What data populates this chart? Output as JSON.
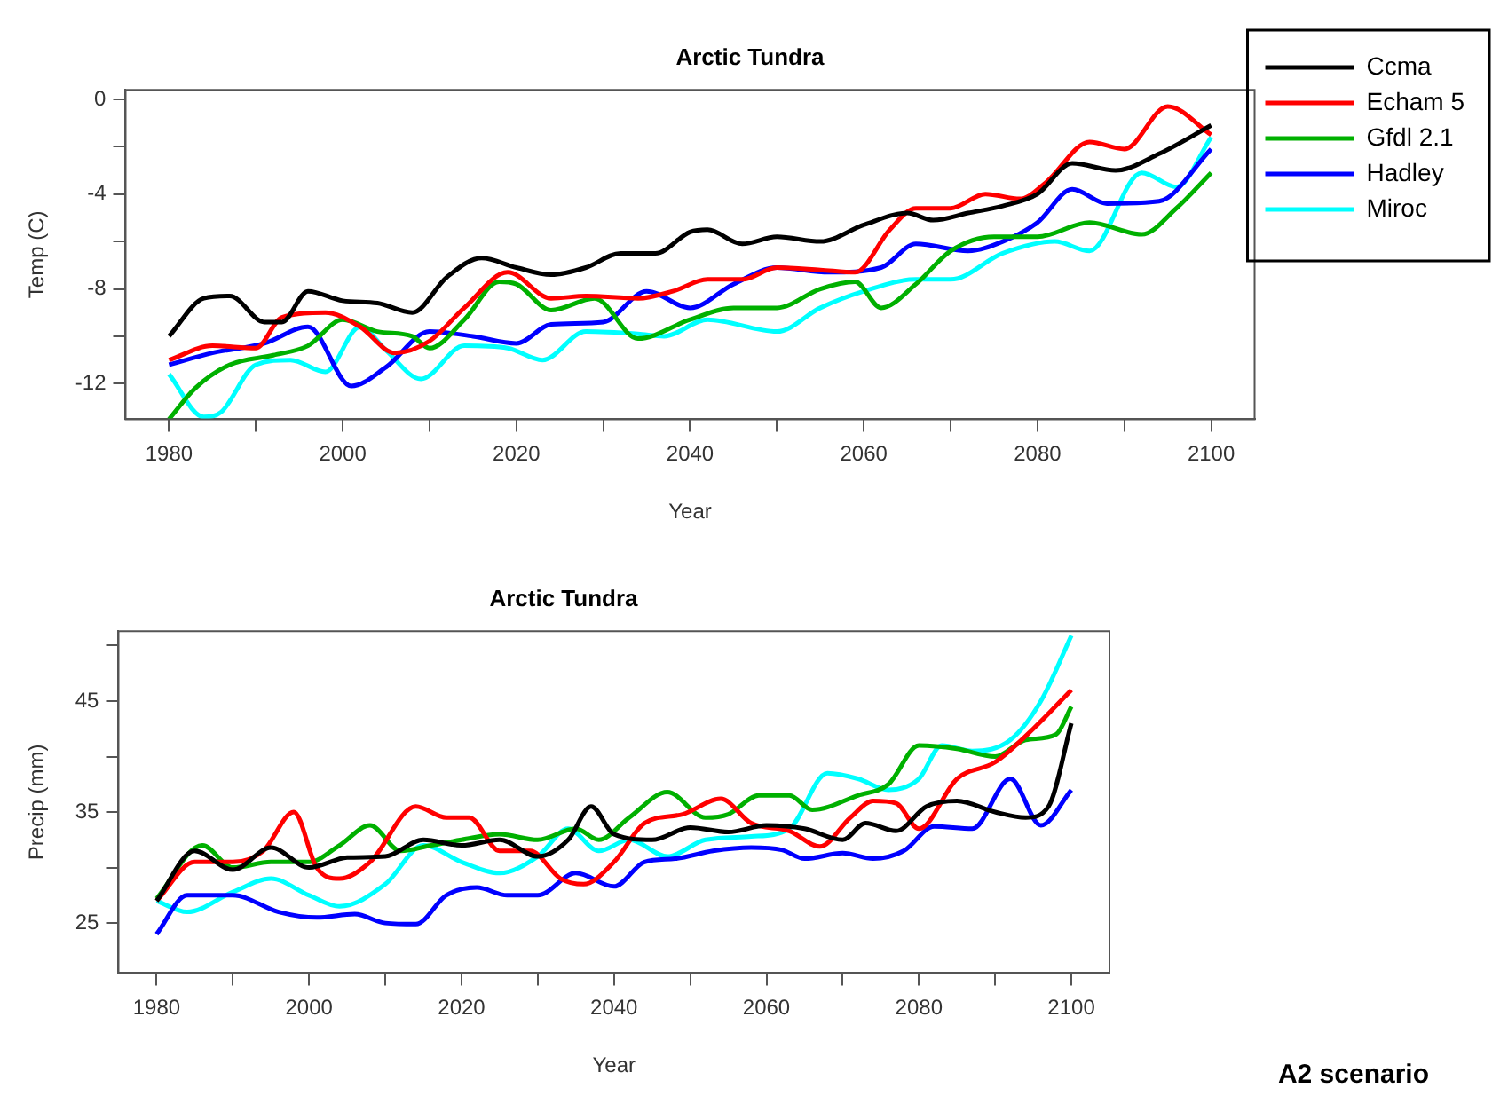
{
  "chart_data": [
    {
      "type": "line",
      "title": "Arctic Tundra",
      "xlabel": "Year",
      "ylabel": "Temp (C)",
      "xlim": [
        1975,
        2105
      ],
      "ylim": [
        -13.5,
        0.4
      ],
      "xticks": [
        1980,
        {
          "value": 1990,
          "label": null
        },
        2000,
        {
          "value": 2010,
          "label": null
        },
        2020,
        {
          "value": 2030,
          "label": null
        },
        2040,
        {
          "value": 2050,
          "label": null
        },
        2060,
        {
          "value": 2070,
          "label": null
        },
        2080,
        {
          "value": 2090,
          "label": null
        },
        2100
      ],
      "yticks": [
        -12,
        {
          "value": -10,
          "label": null
        },
        -8,
        {
          "value": -6,
          "label": null
        },
        -4,
        {
          "value": -2,
          "label": null
        },
        0
      ],
      "grid": false,
      "legend": "right",
      "marker": "none",
      "line_style": "solid",
      "series": [
        {
          "name": "Ccma",
          "color": "#000000",
          "x": [
            1980,
            1984,
            1987,
            1991,
            1993,
            1996,
            2000,
            2004,
            2008,
            2012,
            2016,
            2020,
            2024,
            2028,
            2032,
            2036,
            2040,
            2042,
            2046,
            2050,
            2055,
            2060,
            2065,
            2068,
            2072,
            2076,
            2080,
            2084,
            2089,
            2094,
            2100
          ],
          "values": [
            -10,
            -8.4,
            -8.3,
            -9.4,
            -9.4,
            -8.1,
            -8.5,
            -8.6,
            -9.0,
            -7.5,
            -6.7,
            -7.1,
            -7.4,
            -7.1,
            -6.5,
            -6.5,
            -5.6,
            -5.5,
            -6.1,
            -5.8,
            -6.0,
            -5.3,
            -4.8,
            -5.1,
            -4.8,
            -4.5,
            -4.0,
            -2.7,
            -3.0,
            -2.3,
            -1.1
          ]
        },
        {
          "name": "Echam 5",
          "color": "#ff0000",
          "x": [
            1980,
            1985,
            1990,
            1993,
            1998,
            2002,
            2006,
            2010,
            2014,
            2019,
            2024,
            2028,
            2034,
            2038,
            2042,
            2046,
            2050,
            2055,
            2059,
            2063,
            2066,
            2070,
            2074,
            2078,
            2081,
            2086,
            2090,
            2095,
            2100
          ],
          "values": [
            -11,
            -10.4,
            -10.5,
            -9.2,
            -9.0,
            -9.6,
            -10.7,
            -10.2,
            -8.8,
            -7.3,
            -8.4,
            -8.3,
            -8.4,
            -8.1,
            -7.6,
            -7.6,
            -7.1,
            -7.2,
            -7.3,
            -5.5,
            -4.6,
            -4.6,
            -4.0,
            -4.2,
            -3.5,
            -1.8,
            -2.1,
            -0.3,
            -1.5
          ]
        },
        {
          "name": "Gfdl 2.1",
          "color": "#00b000",
          "x": [
            1980,
            1983,
            1987,
            1992,
            1996,
            2000,
            2004,
            2008,
            2010,
            2014,
            2018,
            2020,
            2024,
            2029,
            2034,
            2040,
            2045,
            2050,
            2055,
            2059,
            2062,
            2066,
            2070,
            2075,
            2080,
            2086,
            2092,
            2096,
            2100
          ],
          "values": [
            -13.5,
            -12.2,
            -11.2,
            -10.8,
            -10.4,
            -9.3,
            -9.8,
            -10.0,
            -10.5,
            -9.3,
            -7.7,
            -7.8,
            -8.9,
            -8.4,
            -10.1,
            -9.3,
            -8.8,
            -8.8,
            -8.0,
            -7.7,
            -8.8,
            -7.8,
            -6.4,
            -5.8,
            -5.8,
            -5.2,
            -5.7,
            -4.6,
            -3.1
          ]
        },
        {
          "name": "Hadley",
          "color": "#0000ff",
          "x": [
            1980,
            1985,
            1991,
            1996,
            2001,
            2005,
            2010,
            2015,
            2020,
            2024,
            2030,
            2035,
            2040,
            2045,
            2050,
            2056,
            2062,
            2066,
            2072,
            2076,
            2080,
            2084,
            2088,
            2094,
            2100
          ],
          "values": [
            -11.2,
            -10.7,
            -10.3,
            -9.6,
            -12.1,
            -11.3,
            -9.8,
            -10.0,
            -10.3,
            -9.5,
            -9.4,
            -8.1,
            -8.8,
            -7.8,
            -7.1,
            -7.3,
            -7.1,
            -6.1,
            -6.4,
            -6.0,
            -5.2,
            -3.8,
            -4.4,
            -4.3,
            -2.1
          ]
        },
        {
          "name": "Miroc",
          "color": "#00ffff",
          "x": [
            1980,
            1984,
            1986,
            1990,
            1994,
            1998,
            2002,
            2005,
            2009,
            2014,
            2019,
            2023,
            2028,
            2034,
            2037,
            2042,
            2050,
            2055,
            2060,
            2066,
            2070,
            2076,
            2082,
            2086,
            2092,
            2096,
            2100
          ],
          "values": [
            -11.6,
            -13.4,
            -13.2,
            -11.2,
            -11.0,
            -11.5,
            -9.6,
            -10.6,
            -11.8,
            -10.4,
            -10.5,
            -11.0,
            -9.8,
            -9.9,
            -10.0,
            -9.3,
            -9.8,
            -8.8,
            -8.1,
            -7.6,
            -7.6,
            -6.5,
            -6.0,
            -6.4,
            -3.1,
            -3.7,
            -1.6
          ]
        }
      ]
    },
    {
      "type": "line",
      "title": "Arctic Tundra",
      "xlabel": "Year",
      "ylabel": "Precip (mm)",
      "xlim": [
        1975,
        2105
      ],
      "ylim": [
        20.5,
        51.3
      ],
      "xticks": [
        1980,
        {
          "value": 1990,
          "label": null
        },
        2000,
        {
          "value": 2010,
          "label": null
        },
        2020,
        {
          "value": 2030,
          "label": null
        },
        2040,
        {
          "value": 2050,
          "label": null
        },
        2060,
        {
          "value": 2070,
          "label": null
        },
        2080,
        {
          "value": 2090,
          "label": null
        },
        2100
      ],
      "yticks": [
        25,
        {
          "value": 30,
          "label": null
        },
        35,
        {
          "value": 40,
          "label": null
        },
        45,
        {
          "value": 50,
          "label": null
        }
      ],
      "grid": false,
      "marker": "none",
      "line_style": "solid",
      "annotations": [
        "A2 scenario"
      ],
      "series": [
        {
          "color": "#000000",
          "x": [
            1980,
            1985,
            1990,
            1995,
            2000,
            2005,
            2010,
            2015,
            2020,
            2025,
            2030,
            2034,
            2037,
            2040,
            2045,
            2050,
            2055,
            2060,
            2065,
            2070,
            2073,
            2077,
            2081,
            2085,
            2090,
            2094,
            2097,
            2100
          ],
          "values": [
            27,
            31.5,
            29.8,
            31.8,
            30,
            30.9,
            31,
            32.5,
            32,
            32.5,
            31,
            32.5,
            35.5,
            33,
            32.5,
            33.6,
            33.2,
            33.8,
            33.5,
            32.5,
            34,
            33.3,
            35.5,
            36,
            35,
            34.5,
            35.5,
            43
          ]
        },
        {
          "color": "#ff0000",
          "x": [
            1980,
            1985,
            1990,
            1994,
            1998,
            2001,
            2004,
            2008,
            2014,
            2018,
            2021,
            2025,
            2029,
            2033,
            2036,
            2040,
            2044,
            2049,
            2054,
            2058,
            2063,
            2067,
            2071,
            2074,
            2077,
            2080,
            2085,
            2090,
            2095,
            2100
          ],
          "values": [
            27,
            30.5,
            30.5,
            31.5,
            35,
            30,
            29,
            30.5,
            35.5,
            34.5,
            34.5,
            31.5,
            31.5,
            29,
            28.5,
            30.5,
            34,
            34.8,
            36.2,
            34,
            33.3,
            31.9,
            34.5,
            36,
            35.8,
            33.5,
            38,
            39.5,
            42.5,
            46
          ]
        },
        {
          "color": "#00b000",
          "x": [
            1980,
            1986,
            1990,
            1995,
            2000,
            2004,
            2008,
            2012,
            2016,
            2020,
            2025,
            2030,
            2035,
            2038,
            2042,
            2047,
            2052,
            2055,
            2059,
            2063,
            2066,
            2072,
            2076,
            2080,
            2085,
            2090,
            2094,
            2098,
            2100
          ],
          "values": [
            27.2,
            32,
            30,
            30.5,
            30.5,
            32,
            33.8,
            31.5,
            32,
            32.5,
            33,
            32.5,
            33.5,
            32.5,
            34.5,
            36.8,
            34.5,
            34.8,
            36.5,
            36.5,
            35.2,
            36.5,
            37.5,
            41,
            40.7,
            40,
            41.5,
            42,
            44.5
          ]
        },
        {
          "color": "#0000ff",
          "x": [
            1980,
            1984,
            1990,
            1996,
            2001,
            2006,
            2010,
            2014,
            2018,
            2022,
            2026,
            2030,
            2035,
            2040,
            2044,
            2048,
            2053,
            2058,
            2062,
            2065,
            2070,
            2074,
            2078,
            2082,
            2087,
            2092,
            2096,
            2100
          ],
          "values": [
            24,
            27.5,
            27.5,
            26,
            25.5,
            25.8,
            25,
            24.9,
            27.5,
            28.2,
            27.5,
            27.5,
            29.5,
            28.3,
            30.5,
            30.8,
            31.5,
            31.8,
            31.6,
            30.8,
            31.3,
            30.8,
            31.5,
            33.7,
            33.5,
            38,
            33.8,
            37
          ]
        },
        {
          "color": "#00ffff",
          "x": [
            1980,
            1984,
            1990,
            1995,
            2000,
            2004,
            2010,
            2015,
            2020,
            2025,
            2030,
            2034,
            2038,
            2042,
            2047,
            2052,
            2058,
            2063,
            2068,
            2072,
            2076,
            2080,
            2083,
            2087,
            2092,
            2096,
            2100
          ],
          "values": [
            27,
            26,
            27.8,
            29,
            27.5,
            26.5,
            28.5,
            32,
            30.5,
            29.5,
            31,
            33.5,
            31.5,
            32.5,
            31,
            32.5,
            32.8,
            33.5,
            38.5,
            38,
            37,
            38,
            41,
            40.5,
            41.5,
            45,
            50.9
          ]
        }
      ]
    }
  ]
}
